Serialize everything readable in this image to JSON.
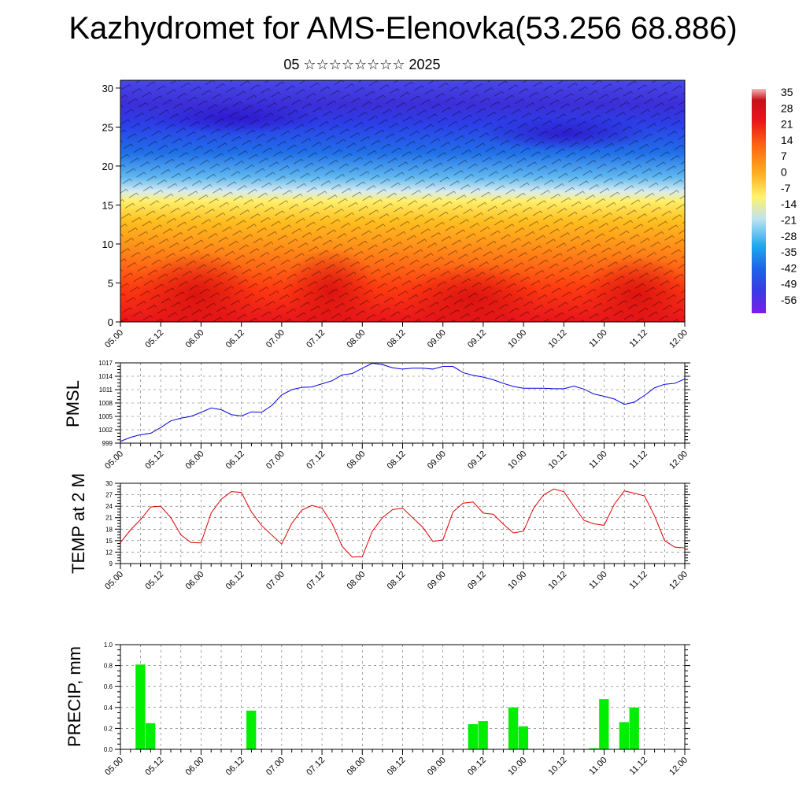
{
  "header": {
    "title": "Kazhydromet for AMS-Elenovka(53.256 68.886)",
    "subtitle": "05 ☆☆☆☆☆☆☆☆ 2025"
  },
  "colors": {
    "temp_line": "#e00000",
    "pmsl_line": "#0000dd",
    "precip_bar": "#00ee00",
    "colorbar_stops": [
      "#7a1ee8",
      "#3a3ae6",
      "#1e64e8",
      "#1ea8f0",
      "#bfe2f0",
      "#fff36a",
      "#ffb020",
      "#ff6a10",
      "#e8141c",
      "#c8101a",
      "#f0b8b8"
    ]
  },
  "chart_data": [
    {
      "type": "heatmap",
      "name": "vertical-profile",
      "title": "",
      "xlabel": "",
      "ylabel": "",
      "x_ticks": [
        "05.00",
        "05.12",
        "06.00",
        "06.12",
        "07.00",
        "07.12",
        "08.00",
        "08.12",
        "09.00",
        "09.12",
        "10.00",
        "10.12",
        "11.00",
        "11.12",
        "12.00"
      ],
      "y_ticks": [
        0,
        5,
        10,
        15,
        20,
        25,
        30
      ],
      "ylim": [
        0,
        31
      ],
      "overlay": "wind barbs",
      "colorbar": {
        "labels": [
          "35",
          "28",
          "21",
          "14",
          "7",
          "0",
          "-7",
          "-14",
          "-21",
          "-28",
          "-35",
          "-42",
          "-49",
          "-56"
        ]
      }
    },
    {
      "type": "line",
      "name": "pmsl",
      "ylabel": "PMSL",
      "ylim": [
        999,
        1017
      ],
      "y_ticks": [
        999,
        1002,
        1005,
        1008,
        1011,
        1014,
        1017
      ],
      "x_ticks": [
        "05.00",
        "05.12",
        "06.00",
        "06.12",
        "07.00",
        "07.12",
        "08.00",
        "08.12",
        "09.00",
        "09.12",
        "10.00",
        "10.12",
        "11.00",
        "11.12",
        "12.00"
      ],
      "grid": true,
      "x": [
        0,
        3,
        6,
        9,
        12,
        15,
        18,
        21,
        24,
        27,
        30,
        33,
        36,
        39,
        42,
        45,
        48,
        51,
        54,
        57,
        60,
        63,
        66,
        69,
        72,
        75,
        78,
        81,
        84,
        87,
        90,
        93,
        96,
        99,
        102,
        105,
        108,
        111,
        114,
        117,
        120,
        123,
        126,
        129,
        132,
        135,
        138,
        141,
        144,
        147,
        150,
        153,
        156,
        159,
        162,
        165,
        168
      ],
      "values": [
        999.4,
        1000.3,
        1000.9,
        1001.2,
        1002.5,
        1004.0,
        1004.6,
        1005.0,
        1005.9,
        1006.9,
        1006.5,
        1005.4,
        1005.1,
        1006.0,
        1005.9,
        1007.4,
        1009.8,
        1011.0,
        1011.5,
        1011.6,
        1012.3,
        1013.0,
        1014.3,
        1014.6,
        1015.8,
        1016.9,
        1016.6,
        1015.9,
        1015.6,
        1015.8,
        1015.8,
        1015.6,
        1016.2,
        1016.2,
        1014.8,
        1014.2,
        1013.8,
        1013.2,
        1012.4,
        1011.7,
        1011.3,
        1011.3,
        1011.3,
        1011.2,
        1011.2,
        1011.8,
        1011.1,
        1010.0,
        1009.5,
        1008.9,
        1007.7,
        1008.2,
        1009.7,
        1011.4,
        1012.2,
        1012.4,
        1013.4
      ]
    },
    {
      "type": "line",
      "name": "temp-2m",
      "ylabel": "TEMP at 2 M",
      "ylim": [
        9,
        30
      ],
      "y_ticks": [
        9,
        12,
        15,
        18,
        21,
        24,
        27,
        30
      ],
      "x_ticks": [
        "05.00",
        "05.12",
        "06.00",
        "06.12",
        "07.00",
        "07.12",
        "08.00",
        "08.12",
        "09.00",
        "09.12",
        "10.00",
        "10.12",
        "11.00",
        "11.12",
        "12.00"
      ],
      "grid": true,
      "x": [
        0,
        3,
        6,
        9,
        12,
        15,
        18,
        21,
        24,
        27,
        30,
        33,
        36,
        39,
        42,
        45,
        48,
        51,
        54,
        57,
        60,
        63,
        66,
        69,
        72,
        75,
        78,
        81,
        84,
        87,
        90,
        93,
        96,
        99,
        102,
        105,
        108,
        111,
        114,
        117,
        120,
        123,
        126,
        129,
        132,
        135,
        138,
        141,
        144,
        147,
        150,
        153,
        156,
        159,
        162,
        165,
        168
      ],
      "values": [
        14.5,
        17.8,
        20.5,
        23.8,
        24.0,
        21.0,
        16.5,
        14.5,
        14.4,
        22.2,
        25.8,
        27.8,
        27.6,
        22.5,
        19.0,
        16.5,
        14.1,
        19.5,
        23.0,
        24.2,
        23.5,
        19.5,
        13.5,
        10.7,
        10.8,
        17.5,
        21.0,
        23.1,
        23.5,
        21.0,
        18.5,
        14.8,
        15.2,
        22.5,
        24.8,
        25.1,
        22.2,
        21.9,
        19.3,
        17.0,
        17.5,
        23.5,
        27.0,
        28.5,
        27.8,
        24.0,
        20.3,
        19.4,
        19.0,
        24.5,
        28.0,
        27.4,
        26.7,
        21.5,
        15.0,
        13.3,
        13.1
      ]
    },
    {
      "type": "bar",
      "name": "precip",
      "ylabel": "PRECIP, mm",
      "ylim": [
        0,
        1.0
      ],
      "y_ticks": [
        "0.0",
        "0.2",
        "0.4",
        "0.6",
        "0.8",
        "1.0"
      ],
      "x_ticks": [
        "05.00",
        "05.12",
        "06.00",
        "06.12",
        "07.00",
        "07.12",
        "08.00",
        "08.12",
        "09.00",
        "09.12",
        "10.00",
        "10.12",
        "11.00",
        "11.12",
        "12.00"
      ],
      "grid": true,
      "x": [
        6,
        9,
        39,
        105,
        108,
        117,
        120,
        141,
        144,
        150,
        153
      ],
      "values": [
        0.81,
        0.25,
        0.37,
        0.24,
        0.27,
        0.4,
        0.22,
        0.01,
        0.48,
        0.26,
        0.4
      ]
    }
  ]
}
